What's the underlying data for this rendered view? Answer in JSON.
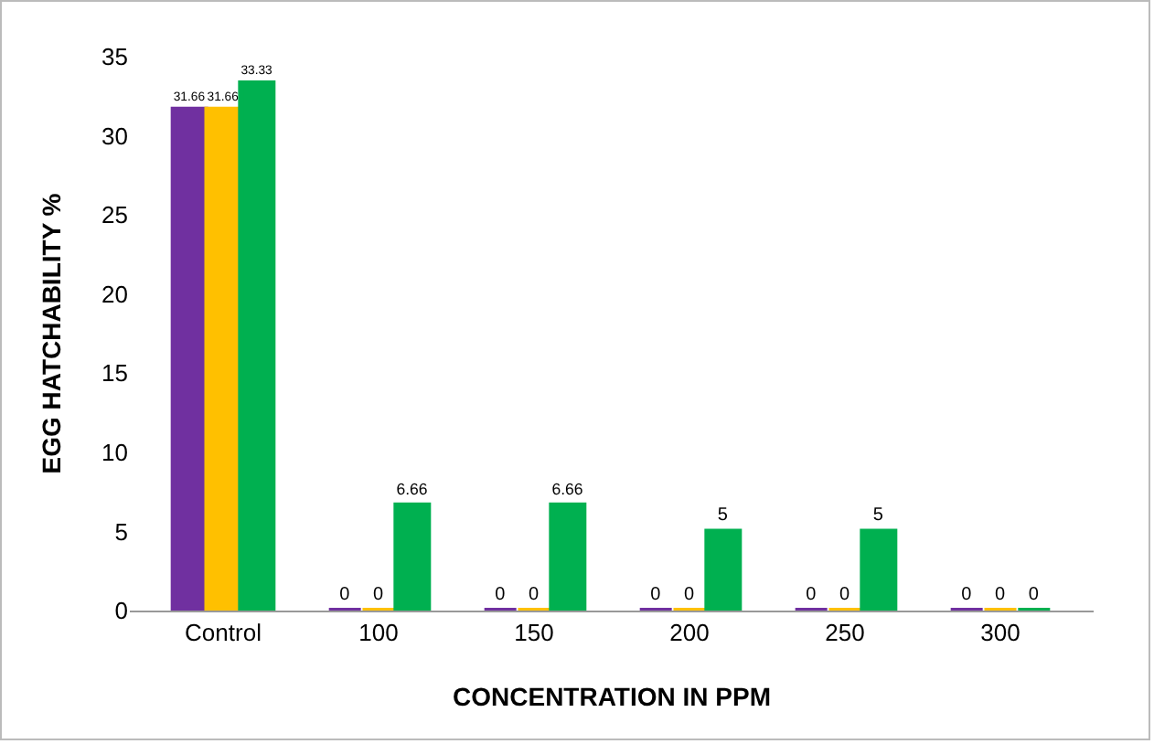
{
  "chart_data": {
    "type": "bar",
    "xlabel": "CONCENTRATION IN PPM",
    "ylabel": "EGG HATCHABILITY %",
    "categories": [
      "Control",
      "100",
      "150",
      "200",
      "250",
      "300"
    ],
    "series": [
      {
        "color": "#7030a0",
        "values": [
          31.66,
          0,
          0,
          0,
          0,
          0
        ]
      },
      {
        "color": "#ffc000",
        "values": [
          31.66,
          0,
          0,
          0,
          0,
          0
        ]
      },
      {
        "color": "#00b050",
        "values": [
          33.33,
          6.66,
          6.66,
          5,
          5,
          0
        ]
      }
    ],
    "ylim": [
      0,
      35
    ],
    "yticks": [
      0,
      5,
      10,
      15,
      20,
      25,
      30,
      35
    ],
    "grid": false,
    "data_labels": true
  }
}
